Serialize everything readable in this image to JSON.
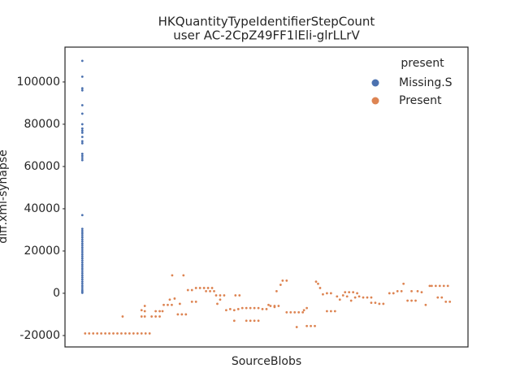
{
  "chart_data": {
    "type": "scatter",
    "title": "HKQuantityTypeIdentifierStepCount",
    "subtitle": "user AC-2CpZ49FF1lEli-glrLLrV",
    "x_label": "SourceBlobs",
    "y_label": "diff.xml-synapse",
    "legend_title": "present",
    "legend_position": "upper right",
    "xlim": [
      0,
      100
    ],
    "ylim": [
      -25400,
      116500
    ],
    "yticks": [
      -20000,
      0,
      20000,
      40000,
      60000,
      80000,
      100000
    ],
    "grid": false,
    "series": [
      {
        "name": "Missing.S",
        "color": "#4c72b0",
        "x": [
          4.3,
          4.3,
          4.3,
          4.3,
          4.3,
          4.3,
          4.3,
          4.3,
          4.3,
          4.3,
          4.3,
          4.3,
          4.3,
          4.3,
          4.3,
          4.3,
          4.3,
          4.3,
          4.3,
          4.3,
          4.3,
          4.3,
          4.3,
          4.3,
          4.3,
          4.3,
          4.3,
          4.3,
          4.3,
          4.3,
          4.3,
          4.3,
          4.3,
          4.3,
          4.3,
          4.3,
          4.3,
          4.3,
          4.3,
          4.3,
          4.3,
          4.3,
          4.3,
          4.3,
          4.3,
          4.3,
          4.3,
          4.3,
          4.3,
          4.3
        ],
        "values": [
          200,
          800,
          1500,
          2500,
          3500,
          4500,
          5500,
          6500,
          7500,
          8500,
          9500,
          10500,
          11500,
          12500,
          13500,
          14500,
          15500,
          16500,
          17500,
          18500,
          19500,
          20500,
          21500,
          22500,
          23500,
          24500,
          25500,
          26500,
          27500,
          28500,
          29500,
          30500,
          37000,
          63000,
          64000,
          65000,
          66000,
          71000,
          72000,
          74000,
          76000,
          77000,
          78000,
          80000,
          85000,
          89000,
          96000,
          97000,
          102500,
          110000
        ]
      },
      {
        "name": "Present",
        "color": "#dd8452",
        "x": [
          5,
          6,
          7,
          8,
          9,
          10,
          11,
          12,
          13,
          14,
          15,
          16,
          17,
          18,
          19,
          20,
          21,
          14.3,
          19,
          19,
          19.8,
          19.8,
          19.8,
          21.5,
          22.5,
          23.5,
          22.5,
          23.5,
          24.2,
          24.5,
          25.5,
          26.5,
          26,
          26.6,
          27.2,
          28,
          29,
          30,
          28.5,
          29.4,
          30.5,
          31.5,
          31.5,
          32.5,
          32.5,
          33.5,
          34.5,
          35.5,
          36.5,
          35,
          36,
          37,
          37.5,
          38.5,
          39.5,
          37.8,
          38.5,
          40,
          41,
          42,
          43,
          44,
          42,
          42.3,
          43.3,
          45,
          46,
          47,
          48,
          45,
          46,
          47,
          48,
          49,
          50,
          51,
          52,
          53,
          50.5,
          52,
          52.5,
          53.5,
          54,
          55,
          55,
          56,
          57,
          58,
          59,
          57.5,
          59.3,
          60,
          60,
          61,
          62,
          62.3,
          62.8,
          63.3,
          64,
          65,
          66,
          67,
          65,
          66,
          67.5,
          68.2,
          69,
          69.5,
          70.5,
          71.5,
          72.5,
          70,
          71,
          72,
          73,
          74,
          75,
          76,
          76,
          77,
          78,
          79,
          80.5,
          81.5,
          82.5,
          83.5,
          84,
          85,
          86,
          87,
          86,
          87.5,
          88.5,
          89.5,
          90.5,
          91,
          92,
          93,
          94,
          95,
          92.5,
          93.5,
          94.5,
          95.5
        ],
        "values": [
          -19000,
          -19000,
          -19000,
          -19000,
          -19000,
          -19000,
          -19000,
          -19000,
          -19000,
          -19000,
          -19000,
          -19000,
          -19000,
          -19000,
          -19000,
          -19000,
          -19000,
          -11000,
          -8000,
          -11000,
          -6000,
          -8500,
          -11000,
          -11000,
          -11000,
          -11000,
          -8500,
          -8500,
          -8500,
          -5500,
          -5500,
          -5500,
          -3000,
          8500,
          -2500,
          -10000,
          -10000,
          -10000,
          -5000,
          8500,
          1500,
          1500,
          -4000,
          -4000,
          2500,
          2500,
          2500,
          2500,
          2500,
          1000,
          1000,
          1000,
          -1000,
          -1000,
          -1000,
          -5000,
          -3000,
          -8000,
          -7500,
          -8000,
          -7500,
          -7000,
          -13000,
          -1000,
          -1000,
          -7000,
          -7000,
          -7000,
          -7000,
          -13000,
          -13000,
          -13000,
          -13000,
          -7500,
          -7500,
          -6000,
          -6000,
          -6000,
          -5500,
          -6500,
          1000,
          4000,
          6000,
          6000,
          -9000,
          -9000,
          -9000,
          -9000,
          -9000,
          -16000,
          -8000,
          -7000,
          -15500,
          -15500,
          -15500,
          5500,
          4500,
          2500,
          -500,
          -8500,
          -8500,
          -8500,
          0,
          0,
          -1500,
          -3000,
          -1000,
          500,
          500,
          500,
          0,
          -1500,
          -3500,
          -2000,
          -1500,
          -2000,
          -2000,
          -2000,
          -4500,
          -4500,
          -5000,
          -5000,
          0,
          0,
          1000,
          1000,
          4500,
          -3500,
          -3500,
          -3500,
          1000,
          1000,
          500,
          -5500,
          3500,
          3500,
          3500,
          3500,
          3500,
          3500,
          -2000,
          -2000,
          -4000,
          -4000
        ]
      }
    ]
  }
}
